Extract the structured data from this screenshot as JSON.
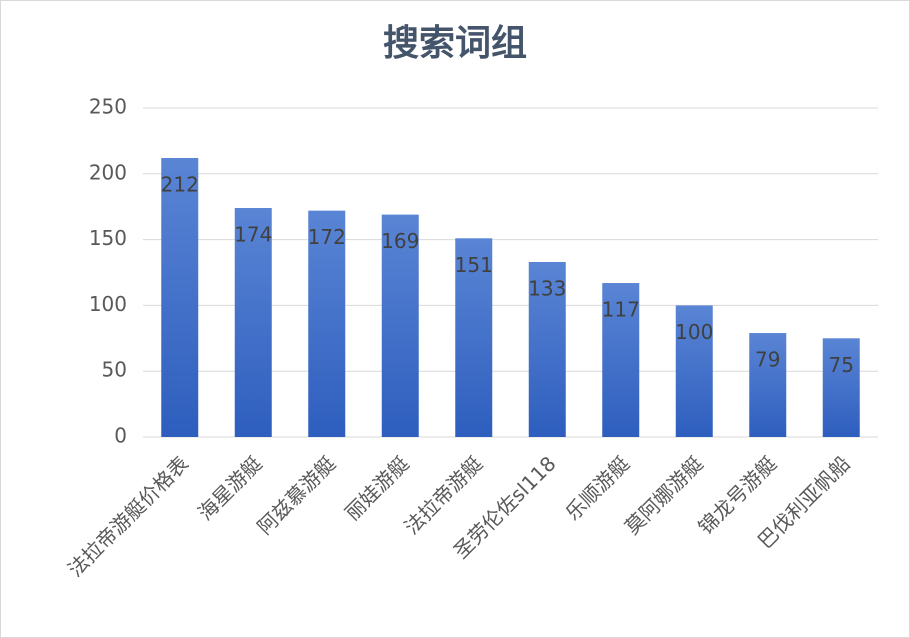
{
  "chart_data": {
    "type": "bar",
    "title": "搜索词组",
    "categories": [
      "法拉帝游艇价格表",
      "海星游艇",
      "阿兹慕游艇",
      "丽娃游艇",
      "法拉帝游艇",
      "圣劳伦佐sl118",
      "乐顺游艇",
      "莫阿娜游艇",
      "锦龙号游艇",
      "巴伐利亚帆船"
    ],
    "values": [
      212,
      174,
      172,
      169,
      151,
      133,
      117,
      100,
      79,
      75
    ],
    "color": "#4472c4",
    "ylim": [
      0,
      250
    ],
    "yticks": [
      0,
      50,
      100,
      150,
      200,
      250
    ],
    "grid": true
  }
}
